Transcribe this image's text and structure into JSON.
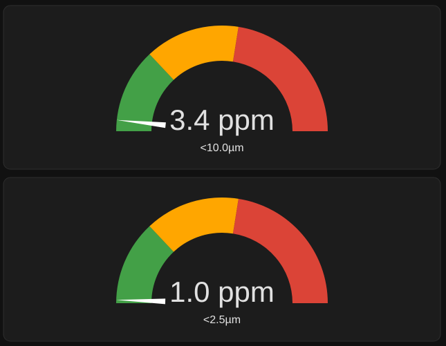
{
  "chart_data": [
    {
      "type": "gauge",
      "title": "<10.0µm",
      "values": [
        3.4
      ],
      "value_labels": [
        "3.4 ppm"
      ],
      "ylim": [
        0,
        100
      ],
      "bands": [
        {
          "from": 0,
          "to": 26,
          "color": "#43a047"
        },
        {
          "from": 26,
          "to": 55,
          "color": "#ffa600"
        },
        {
          "from": 55,
          "to": 100,
          "color": "#db4437"
        }
      ],
      "needle_color": "#ffffff"
    },
    {
      "type": "gauge",
      "title": "<2.5µm",
      "values": [
        1.0
      ],
      "value_labels": [
        "1.0 ppm"
      ],
      "ylim": [
        0,
        100
      ],
      "bands": [
        {
          "from": 0,
          "to": 26,
          "color": "#43a047"
        },
        {
          "from": 26,
          "to": 55,
          "color": "#ffa600"
        },
        {
          "from": 55,
          "to": 100,
          "color": "#db4437"
        }
      ],
      "needle_color": "#ffffff"
    }
  ]
}
